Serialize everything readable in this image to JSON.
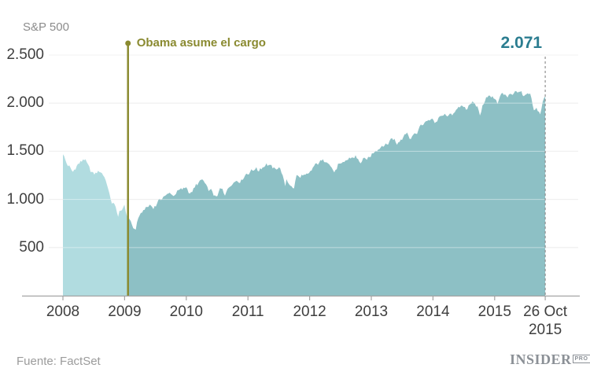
{
  "chart": {
    "axis_title": "S&P 500",
    "annotation_label": "Obama asume el cargo",
    "end_label": "2.071",
    "colors": {
      "pre_fill": "#b1dce0",
      "post_fill": "#8dc0c5",
      "annotation": "#8a8a30",
      "end_label_text": "#2b7d90",
      "grid": "#e7e7e7",
      "grid_over_fill": "rgba(255,255,255,0.4)",
      "axis": "#a3a3a3",
      "dashed_line": "#8f8f8f",
      "tick_text": "#3f3f3f",
      "muted_text": "#8c8c8c"
    }
  },
  "footer": {
    "source": "Fuente: FactSet",
    "logo": {
      "main": "INSIDER",
      "badge": "PRO"
    }
  },
  "chart_data": {
    "type": "area",
    "title": "S&P 500",
    "xlabel": "",
    "ylabel": "S&P 500",
    "x_range": [
      2008,
      2015.82
    ],
    "y_range": [
      0,
      2500
    ],
    "grid": "horizontal",
    "x_ticks": [
      {
        "t": 2008,
        "label": "2008"
      },
      {
        "t": 2009,
        "label": "2009"
      },
      {
        "t": 2010,
        "label": "2010"
      },
      {
        "t": 2011,
        "label": "2011"
      },
      {
        "t": 2012,
        "label": "2012"
      },
      {
        "t": 2013,
        "label": "2013"
      },
      {
        "t": 2014,
        "label": "2014"
      },
      {
        "t": 2015,
        "label": "2015"
      },
      {
        "t": 2015.82,
        "label": "26 Oct",
        "label2": "2015"
      }
    ],
    "y_ticks": [
      {
        "v": 500,
        "label": "500"
      },
      {
        "v": 1000,
        "label": "1.000"
      },
      {
        "v": 1500,
        "label": "1.500"
      },
      {
        "v": 2000,
        "label": "2.000"
      },
      {
        "v": 2500,
        "label": "2.500"
      }
    ],
    "annotations": [
      {
        "t": 2009.055,
        "label": "Obama asume el cargo",
        "type": "vertical-line"
      }
    ],
    "split_t": 2009.055,
    "end_point": {
      "t": 2015.82,
      "value": 2071,
      "label": "2.071",
      "date_label": "26 Oct 2015"
    },
    "series": [
      {
        "name": "S&P 500",
        "points": [
          [
            2008.0,
            1468
          ],
          [
            2008.02,
            1447
          ],
          [
            2008.05,
            1378
          ],
          [
            2008.08,
            1353
          ],
          [
            2008.12,
            1331
          ],
          [
            2008.16,
            1288
          ],
          [
            2008.21,
            1323
          ],
          [
            2008.25,
            1370
          ],
          [
            2008.29,
            1386
          ],
          [
            2008.33,
            1426
          ],
          [
            2008.37,
            1400
          ],
          [
            2008.42,
            1340
          ],
          [
            2008.46,
            1280
          ],
          [
            2008.5,
            1262
          ],
          [
            2008.54,
            1267
          ],
          [
            2008.58,
            1298
          ],
          [
            2008.62,
            1283
          ],
          [
            2008.66,
            1255
          ],
          [
            2008.71,
            1166
          ],
          [
            2008.75,
            1057
          ],
          [
            2008.79,
            969
          ],
          [
            2008.83,
            940
          ],
          [
            2008.87,
            896
          ],
          [
            2008.89,
            800
          ],
          [
            2008.92,
            887
          ],
          [
            2008.94,
            871
          ],
          [
            2008.96,
            903
          ],
          [
            2009.0,
            932
          ],
          [
            2009.02,
            850
          ],
          [
            2009.04,
            826
          ],
          [
            2009.055,
            805
          ],
          [
            2009.07,
            827
          ],
          [
            2009.09,
            770
          ],
          [
            2009.12,
            735
          ],
          [
            2009.16,
            683
          ],
          [
            2009.18,
            676
          ],
          [
            2009.21,
            798
          ],
          [
            2009.25,
            833
          ],
          [
            2009.29,
            873
          ],
          [
            2009.33,
            903
          ],
          [
            2009.37,
            919
          ],
          [
            2009.42,
            944
          ],
          [
            2009.46,
            919
          ],
          [
            2009.5,
            923
          ],
          [
            2009.54,
            987
          ],
          [
            2009.58,
            1002
          ],
          [
            2009.62,
            1021
          ],
          [
            2009.66,
            1043
          ],
          [
            2009.71,
            1057
          ],
          [
            2009.75,
            1071
          ],
          [
            2009.79,
            1036
          ],
          [
            2009.83,
            1067
          ],
          [
            2009.87,
            1096
          ],
          [
            2009.92,
            1106
          ],
          [
            2009.96,
            1115
          ],
          [
            2010.0,
            1133
          ],
          [
            2010.04,
            1074
          ],
          [
            2010.08,
            1066
          ],
          [
            2010.12,
            1104
          ],
          [
            2010.16,
            1150
          ],
          [
            2010.21,
            1169
          ],
          [
            2010.25,
            1207
          ],
          [
            2010.29,
            1187
          ],
          [
            2010.33,
            1136
          ],
          [
            2010.37,
            1089
          ],
          [
            2010.42,
            1092
          ],
          [
            2010.46,
            1031
          ],
          [
            2010.5,
            1023
          ],
          [
            2010.54,
            1102
          ],
          [
            2010.58,
            1122
          ],
          [
            2010.62,
            1049
          ],
          [
            2010.66,
            1091
          ],
          [
            2010.71,
            1141
          ],
          [
            2010.75,
            1165
          ],
          [
            2010.79,
            1183
          ],
          [
            2010.83,
            1198
          ],
          [
            2010.87,
            1181
          ],
          [
            2010.92,
            1224
          ],
          [
            2010.96,
            1258
          ],
          [
            2011.0,
            1272
          ],
          [
            2011.04,
            1286
          ],
          [
            2011.08,
            1308
          ],
          [
            2011.12,
            1327
          ],
          [
            2011.16,
            1296
          ],
          [
            2011.21,
            1326
          ],
          [
            2011.25,
            1332
          ],
          [
            2011.29,
            1364
          ],
          [
            2011.33,
            1355
          ],
          [
            2011.37,
            1345
          ],
          [
            2011.42,
            1314
          ],
          [
            2011.46,
            1321
          ],
          [
            2011.5,
            1339
          ],
          [
            2011.54,
            1292
          ],
          [
            2011.58,
            1200
          ],
          [
            2011.6,
            1119
          ],
          [
            2011.62,
            1219
          ],
          [
            2011.66,
            1162
          ],
          [
            2011.71,
            1131
          ],
          [
            2011.74,
            1099
          ],
          [
            2011.77,
            1195
          ],
          [
            2011.79,
            1253
          ],
          [
            2011.83,
            1224
          ],
          [
            2011.87,
            1247
          ],
          [
            2011.92,
            1244
          ],
          [
            2011.96,
            1258
          ],
          [
            2012.0,
            1277
          ],
          [
            2012.04,
            1312
          ],
          [
            2012.08,
            1351
          ],
          [
            2012.12,
            1366
          ],
          [
            2012.16,
            1390
          ],
          [
            2012.21,
            1408
          ],
          [
            2012.25,
            1398
          ],
          [
            2012.29,
            1398
          ],
          [
            2012.33,
            1354
          ],
          [
            2012.37,
            1310
          ],
          [
            2012.41,
            1278
          ],
          [
            2012.46,
            1362
          ],
          [
            2012.5,
            1356
          ],
          [
            2012.54,
            1379
          ],
          [
            2012.58,
            1402
          ],
          [
            2012.62,
            1407
          ],
          [
            2012.66,
            1436
          ],
          [
            2012.71,
            1441
          ],
          [
            2012.75,
            1444
          ],
          [
            2012.79,
            1412
          ],
          [
            2012.83,
            1380
          ],
          [
            2012.87,
            1416
          ],
          [
            2012.92,
            1419
          ],
          [
            2012.96,
            1426
          ],
          [
            2013.0,
            1462
          ],
          [
            2013.04,
            1498
          ],
          [
            2013.08,
            1518
          ],
          [
            2013.12,
            1515
          ],
          [
            2013.16,
            1552
          ],
          [
            2013.21,
            1569
          ],
          [
            2013.25,
            1562
          ],
          [
            2013.29,
            1598
          ],
          [
            2013.33,
            1633
          ],
          [
            2013.37,
            1631
          ],
          [
            2013.41,
            1573
          ],
          [
            2013.46,
            1606
          ],
          [
            2013.5,
            1632
          ],
          [
            2013.54,
            1686
          ],
          [
            2013.58,
            1691
          ],
          [
            2013.62,
            1633
          ],
          [
            2013.66,
            1655
          ],
          [
            2013.71,
            1682
          ],
          [
            2013.75,
            1695
          ],
          [
            2013.79,
            1757
          ],
          [
            2013.83,
            1771
          ],
          [
            2013.87,
            1806
          ],
          [
            2013.92,
            1811
          ],
          [
            2013.96,
            1848
          ],
          [
            2014.0,
            1832
          ],
          [
            2014.04,
            1783
          ],
          [
            2014.08,
            1839
          ],
          [
            2014.12,
            1859
          ],
          [
            2014.16,
            1878
          ],
          [
            2014.21,
            1872
          ],
          [
            2014.25,
            1864
          ],
          [
            2014.29,
            1884
          ],
          [
            2014.33,
            1897
          ],
          [
            2014.37,
            1924
          ],
          [
            2014.42,
            1950
          ],
          [
            2014.46,
            1960
          ],
          [
            2014.5,
            1973
          ],
          [
            2014.54,
            1931
          ],
          [
            2014.58,
            1988
          ],
          [
            2014.62,
            2003
          ],
          [
            2014.66,
            1994
          ],
          [
            2014.71,
            1972
          ],
          [
            2014.75,
            1906
          ],
          [
            2014.77,
            1862
          ],
          [
            2014.8,
            1965
          ],
          [
            2014.83,
            2018
          ],
          [
            2014.87,
            2068
          ],
          [
            2014.92,
            2075
          ],
          [
            2014.96,
            2059
          ],
          [
            2015.0,
            2058
          ],
          [
            2015.04,
            1995
          ],
          [
            2015.08,
            2057
          ],
          [
            2015.12,
            2105
          ],
          [
            2015.16,
            2081
          ],
          [
            2015.21,
            2068
          ],
          [
            2015.25,
            2108
          ],
          [
            2015.29,
            2086
          ],
          [
            2015.33,
            2121
          ],
          [
            2015.37,
            2107
          ],
          [
            2015.4,
            2131
          ],
          [
            2015.44,
            2109
          ],
          [
            2015.46,
            2063
          ],
          [
            2015.5,
            2077
          ],
          [
            2015.54,
            2104
          ],
          [
            2015.58,
            2080
          ],
          [
            2015.62,
            1972
          ],
          [
            2015.645,
            1893
          ],
          [
            2015.67,
            1949
          ],
          [
            2015.71,
            1920
          ],
          [
            2015.74,
            1882
          ],
          [
            2015.77,
            1995
          ],
          [
            2015.79,
            2018
          ],
          [
            2015.81,
            2075
          ],
          [
            2015.82,
            2071
          ]
        ]
      }
    ]
  }
}
